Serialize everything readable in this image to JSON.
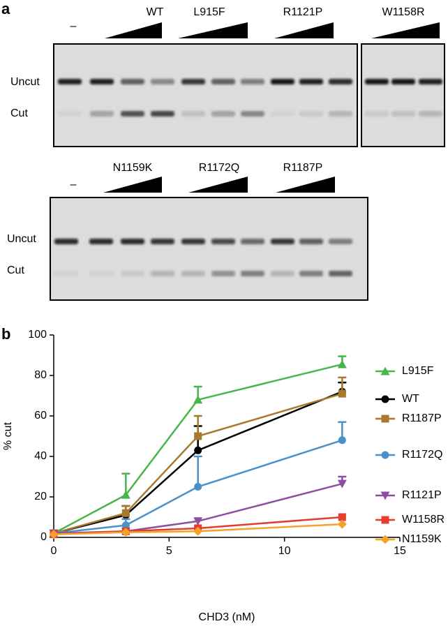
{
  "panel_labels": [
    "a",
    "b"
  ],
  "gels": [
    {
      "control": "–",
      "groups": [
        "WT",
        "L915F",
        "R1121P",
        "W1158R"
      ],
      "rows": [
        "Uncut",
        "Cut"
      ]
    },
    {
      "control": "–",
      "groups": [
        "N1159K",
        "R1172Q",
        "R1187P"
      ],
      "rows": [
        "Uncut",
        "Cut"
      ]
    }
  ],
  "chart_data": {
    "type": "line",
    "xlabel": "CHD3 (nM)",
    "ylabel": "% cut",
    "x": [
      0,
      3.125,
      6.25,
      12.5
    ],
    "series": [
      {
        "name": "L915F",
        "color": "#45b649",
        "marker": "triangle-up",
        "values": [
          2,
          21,
          68,
          85.5
        ],
        "errors": [
          null,
          10.5,
          6.5,
          4
        ]
      },
      {
        "name": "WT",
        "color": "#000000",
        "marker": "circle",
        "values": [
          2,
          11,
          43,
          72
        ],
        "errors": [
          null,
          4.5,
          12,
          4.5
        ]
      },
      {
        "name": "R1187P",
        "color": "#a8792c",
        "marker": "square",
        "values": [
          2,
          12,
          50,
          71
        ],
        "errors": [
          null,
          3.5,
          10,
          8
        ]
      },
      {
        "name": "R1172Q",
        "color": "#4a90c9",
        "marker": "circle",
        "values": [
          2,
          6,
          25,
          48
        ],
        "errors": [
          null,
          3,
          15,
          9
        ]
      },
      {
        "name": "R1121P",
        "color": "#8e4fa1",
        "marker": "triangle-down",
        "values": [
          2,
          3,
          8,
          26.5
        ],
        "errors": [
          null,
          null,
          null,
          3.5
        ]
      },
      {
        "name": "W1158R",
        "color": "#e23d2d",
        "marker": "square",
        "values": [
          1.5,
          3,
          4.5,
          10
        ],
        "errors": [
          null,
          null,
          null,
          null
        ]
      },
      {
        "name": "N1159K",
        "color": "#f6a12b",
        "marker": "diamond",
        "values": [
          1.5,
          2.5,
          3,
          6.5
        ],
        "errors": [
          null,
          null,
          null,
          null
        ]
      }
    ],
    "xlim": [
      0,
      15
    ],
    "ylim": [
      0,
      100
    ],
    "xticks": [
      0,
      5,
      10,
      15
    ],
    "yticks": [
      0,
      20,
      40,
      60,
      80,
      100
    ]
  }
}
